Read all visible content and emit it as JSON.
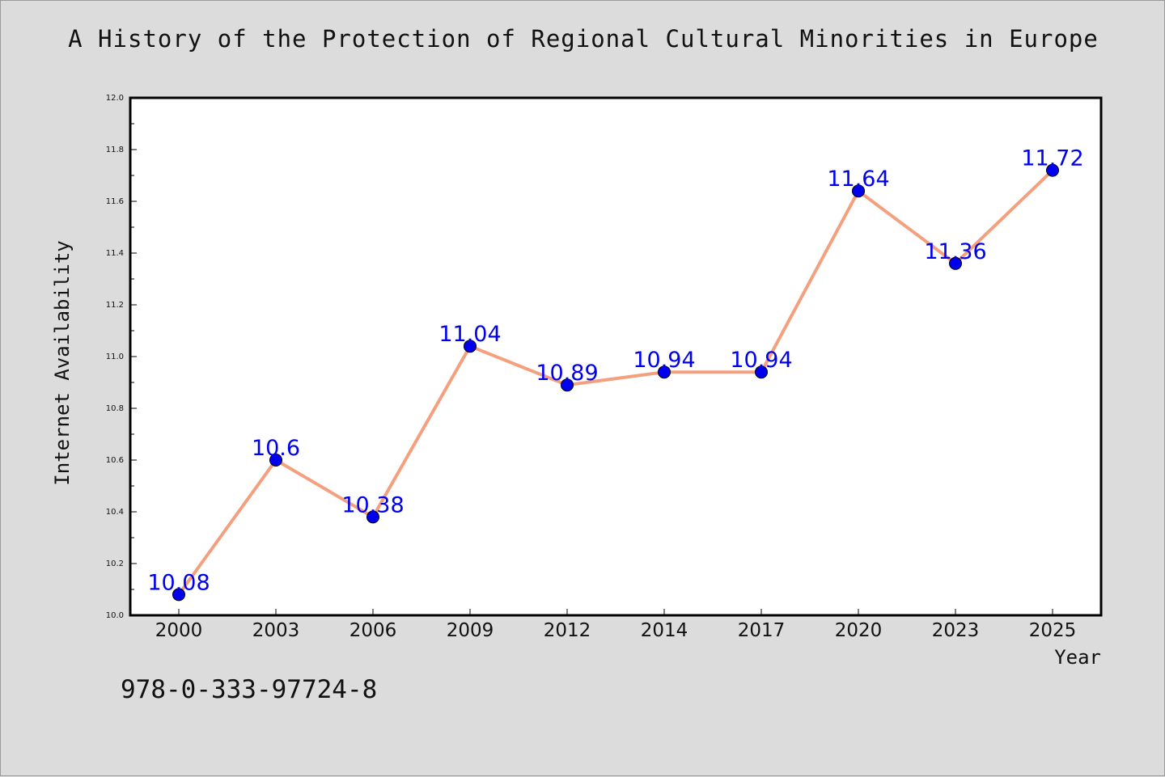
{
  "chart_data": {
    "type": "line",
    "title": "A History of the Protection of Regional Cultural Minorities in Europe",
    "xlabel": "Year",
    "ylabel": "Internet Availability",
    "categories": [
      "2000",
      "2003",
      "2006",
      "2009",
      "2012",
      "2014",
      "2017",
      "2020",
      "2023",
      "2025"
    ],
    "series": [
      {
        "values": [
          10.08,
          10.6,
          10.38,
          11.04,
          10.89,
          10.94,
          10.94,
          11.64,
          11.36,
          11.72
        ],
        "data_labels": [
          "10.08",
          "10.6",
          "10.38",
          "11.04",
          "10.89",
          "10.94",
          "10.94",
          "11.64",
          "11.36",
          "11.72"
        ],
        "line_color": "#f4a07f",
        "marker_color": "#0000ee"
      }
    ],
    "ylim": [
      10.0,
      12.0
    ],
    "y_ticks": [
      "10.0",
      "10.2",
      "10.4",
      "10.6",
      "10.8",
      "11.0",
      "11.2",
      "11.4",
      "11.6",
      "11.8",
      "12.0"
    ],
    "grid": false,
    "label_color": "#0000ee"
  },
  "footer": {
    "isbn": "978-0-333-97724-8"
  }
}
